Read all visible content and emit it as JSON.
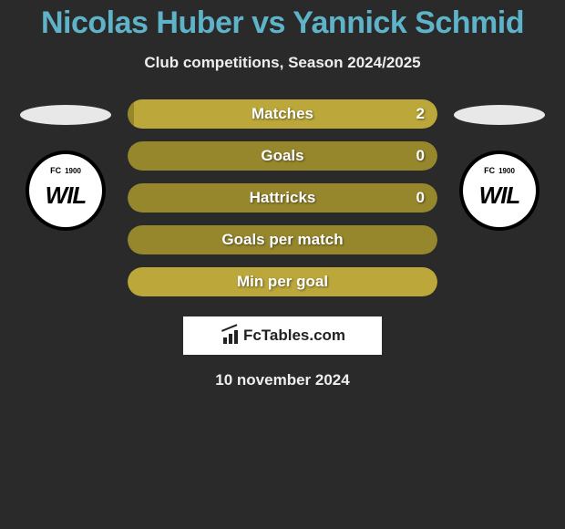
{
  "title": "Nicolas Huber vs Yannick Schmid",
  "subtitle": "Club competitions, Season 2024/2025",
  "date": "10 november 2024",
  "attribution": "FcTables.com",
  "club_badge": {
    "main": "WIL"
  },
  "colors": {
    "olive_dark": "#96872d",
    "olive_light": "#bba73a",
    "background": "#2a2a2a",
    "title": "#5fb3c9"
  },
  "bars": [
    {
      "label": "Matches",
      "left_value": "",
      "right_value": "2",
      "left_width_pct": 2,
      "left_color": "#96872d",
      "right_color": "#bba73a"
    },
    {
      "label": "Goals",
      "left_value": "",
      "right_value": "0",
      "left_width_pct": 0,
      "left_color": "#96872d",
      "right_color": "#bba73a",
      "single": true,
      "single_color": "#96872d"
    },
    {
      "label": "Hattricks",
      "left_value": "",
      "right_value": "0",
      "left_width_pct": 0,
      "left_color": "#96872d",
      "right_color": "#bba73a",
      "single": true,
      "single_color": "#96872d"
    },
    {
      "label": "Goals per match",
      "left_value": "",
      "right_value": "",
      "left_width_pct": 0,
      "left_color": "#96872d",
      "right_color": "#bba73a",
      "single": true,
      "single_color": "#96872d"
    },
    {
      "label": "Min per goal",
      "left_value": "",
      "right_value": "",
      "left_width_pct": 0,
      "left_color": "#96872d",
      "right_color": "#bba73a",
      "single": true,
      "single_color": "#bba73a"
    }
  ]
}
